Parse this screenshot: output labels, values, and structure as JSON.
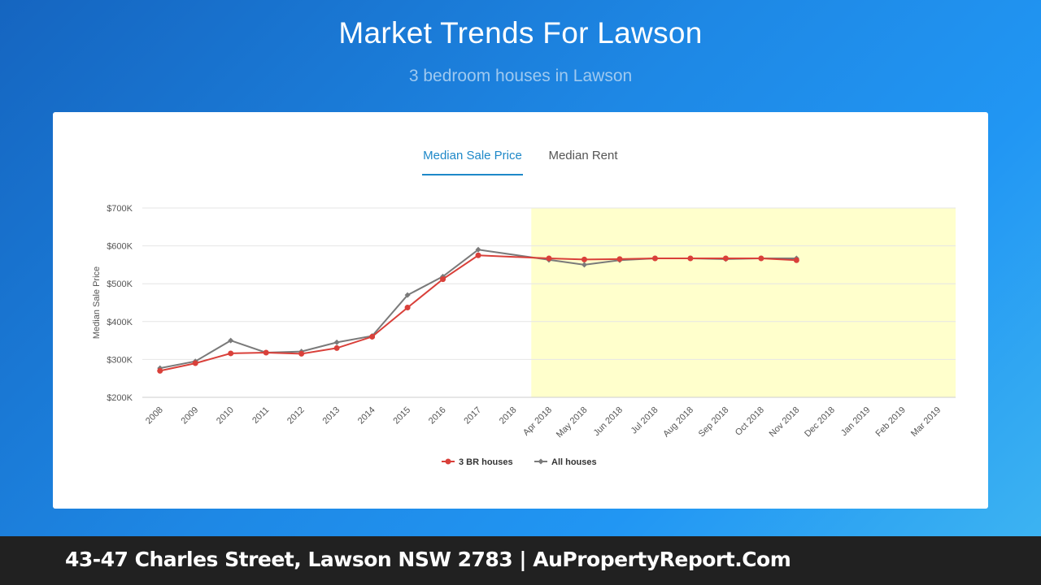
{
  "header": {
    "title": "Market Trends For Lawson",
    "subtitle": "3 bedroom houses in Lawson"
  },
  "tabs": [
    {
      "label": "Median Sale Price",
      "active": true
    },
    {
      "label": "Median Rent",
      "active": false
    }
  ],
  "colors": {
    "accent": "#1e88c8",
    "series_3br": "#d9403a",
    "series_all": "#7a7a7a",
    "highlight": "#ffffcc"
  },
  "chart_data": {
    "type": "line",
    "xlabel": "",
    "ylabel": "Median Sale Price",
    "ylim": [
      200000,
      700000
    ],
    "yticks": [
      "$200K",
      "$300K",
      "$400K",
      "$500K",
      "$600K",
      "$700K"
    ],
    "ytick_values": [
      200000,
      300000,
      400000,
      500000,
      600000,
      700000
    ],
    "categories": [
      "2008",
      "2009",
      "2010",
      "2011",
      "2012",
      "2013",
      "2014",
      "2015",
      "2016",
      "2017",
      "2018",
      "Apr 2018",
      "May 2018",
      "Jun 2018",
      "Jul 2018",
      "Aug 2018",
      "Sep 2018",
      "Oct 2018",
      "Nov 2018",
      "Dec 2018",
      "Jan 2019",
      "Feb 2019",
      "Mar 2019"
    ],
    "highlight_range": [
      "Apr 2018",
      "Mar 2019"
    ],
    "grid": true,
    "legend_position": "bottom",
    "series": [
      {
        "name": "3 BR houses",
        "values": [
          270000,
          290000,
          316000,
          318000,
          315000,
          330000,
          360000,
          437000,
          512000,
          575000,
          null,
          567000,
          564000,
          565000,
          567000,
          567000,
          567000,
          567000,
          562000,
          null,
          null,
          null,
          null
        ]
      },
      {
        "name": "All houses",
        "values": [
          277000,
          295000,
          350000,
          318000,
          321000,
          345000,
          362000,
          470000,
          519000,
          590000,
          null,
          563000,
          550000,
          562000,
          567000,
          567000,
          565000,
          567000,
          567000,
          null,
          null,
          null,
          null
        ]
      }
    ]
  },
  "footer": {
    "text": "43-47 Charles Street, Lawson NSW 2783 | AuPropertyReport.Com"
  }
}
